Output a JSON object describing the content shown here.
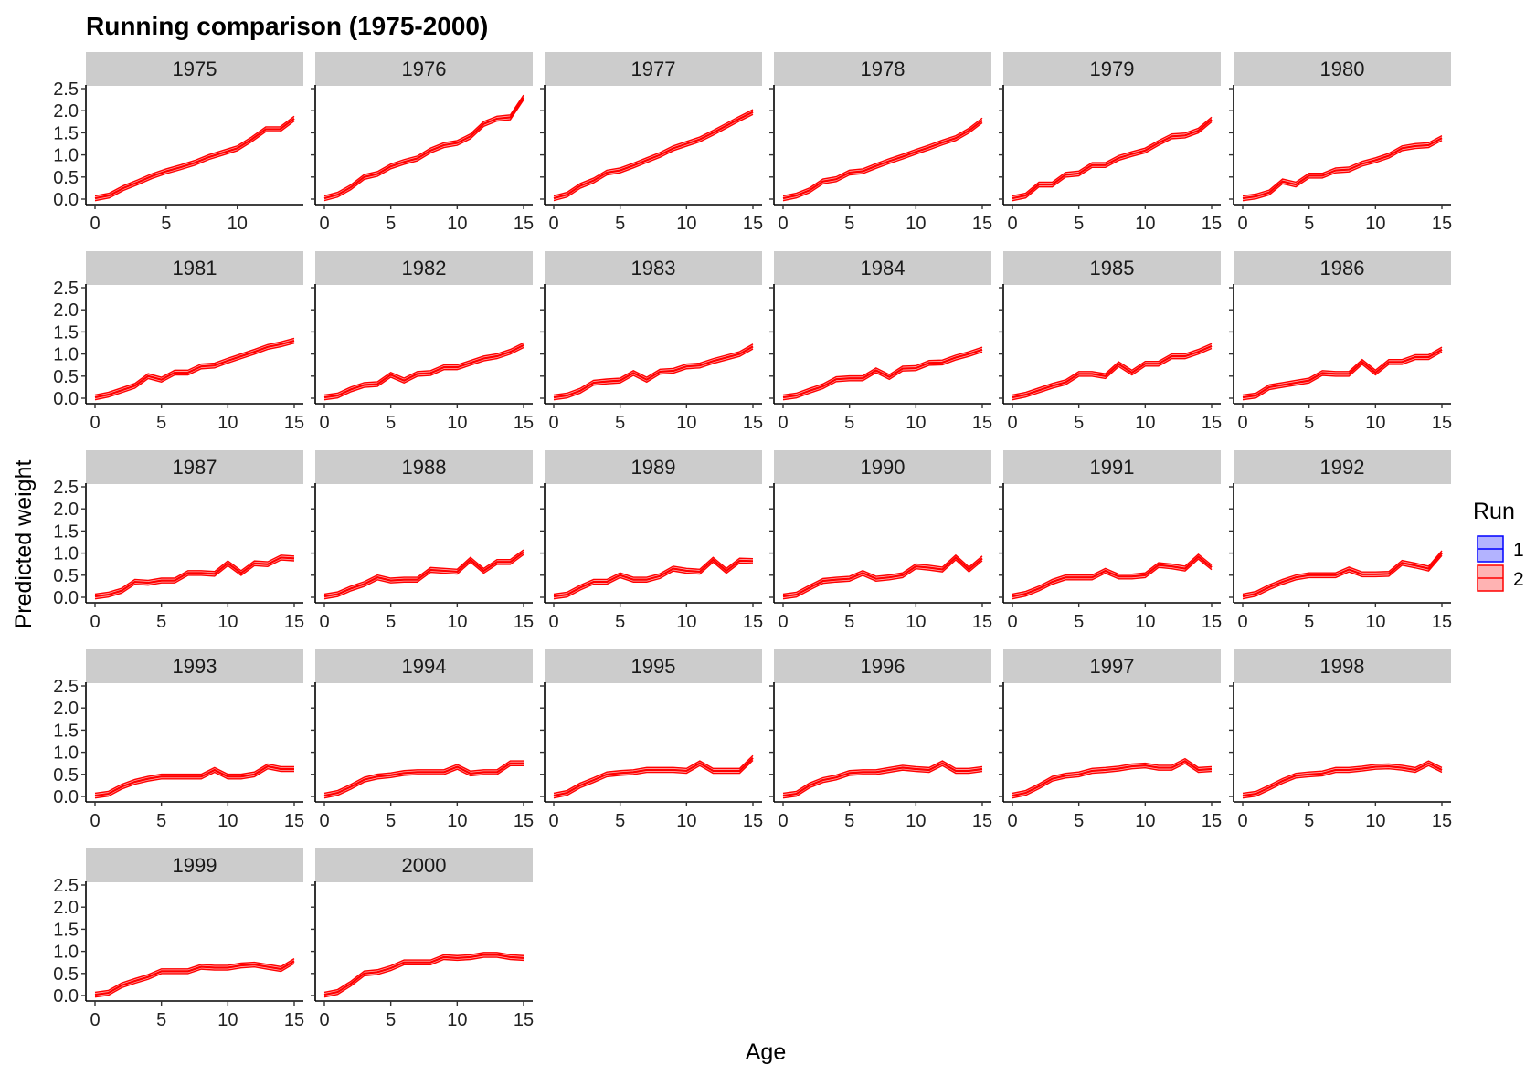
{
  "chart_data": {
    "type": "line",
    "title": "Running comparison (1975-2000)",
    "xlabel": "Age",
    "ylabel": "Predicted weight",
    "ylim": [
      0,
      2.5
    ],
    "y_ticks": [
      "0.0",
      "0.5",
      "1.0",
      "1.5",
      "2.0",
      "2.5"
    ],
    "grid": false,
    "legend": {
      "title": "Run",
      "position": "right",
      "entries": [
        {
          "label": "1",
          "line": "#0000ff",
          "fill": "#b3b3ff"
        },
        {
          "label": "2",
          "line": "#ff0000",
          "fill": "#ffb3b3"
        }
      ]
    },
    "panels": [
      {
        "strip": "1975",
        "xlim": [
          0,
          14
        ],
        "x_ticks": [
          "0",
          "5",
          "10"
        ],
        "y": [
          0.02,
          0.08,
          0.25,
          0.38,
          0.52,
          0.63,
          0.72,
          0.82,
          0.95,
          1.05,
          1.15,
          1.35,
          1.58,
          1.58,
          1.82
        ]
      },
      {
        "strip": "1976",
        "xlim": [
          0,
          15
        ],
        "x_ticks": [
          "0",
          "5",
          "10",
          "15"
        ],
        "y": [
          0.02,
          0.1,
          0.27,
          0.5,
          0.57,
          0.74,
          0.84,
          0.92,
          1.1,
          1.22,
          1.27,
          1.42,
          1.7,
          1.82,
          1.85,
          2.3
        ]
      },
      {
        "strip": "1977",
        "xlim": [
          0,
          15
        ],
        "x_ticks": [
          "0",
          "5",
          "10",
          "15"
        ],
        "y": [
          0.02,
          0.1,
          0.3,
          0.42,
          0.6,
          0.65,
          0.76,
          0.88,
          1.0,
          1.15,
          1.25,
          1.35,
          1.5,
          1.66,
          1.82,
          1.97
        ]
      },
      {
        "strip": "1978",
        "xlim": [
          0,
          15
        ],
        "x_ticks": [
          "0",
          "5",
          "10",
          "15"
        ],
        "y": [
          0.02,
          0.08,
          0.2,
          0.4,
          0.45,
          0.6,
          0.63,
          0.75,
          0.86,
          0.96,
          1.07,
          1.17,
          1.28,
          1.38,
          1.55,
          1.78
        ]
      },
      {
        "strip": "1979",
        "xlim": [
          0,
          15
        ],
        "x_ticks": [
          "0",
          "5",
          "10",
          "15"
        ],
        "y": [
          0.02,
          0.08,
          0.33,
          0.33,
          0.55,
          0.58,
          0.77,
          0.77,
          0.93,
          1.02,
          1.1,
          1.27,
          1.42,
          1.44,
          1.55,
          1.8
        ]
      },
      {
        "strip": "1980",
        "xlim": [
          0,
          15
        ],
        "x_ticks": [
          "0",
          "5",
          "10",
          "15"
        ],
        "y": [
          0.02,
          0.06,
          0.15,
          0.4,
          0.33,
          0.53,
          0.53,
          0.65,
          0.67,
          0.8,
          0.88,
          0.98,
          1.15,
          1.2,
          1.22,
          1.38
        ]
      },
      {
        "strip": "1981",
        "xlim": [
          0,
          15
        ],
        "x_ticks": [
          "0",
          "5",
          "10",
          "15"
        ],
        "y": [
          0.02,
          0.08,
          0.18,
          0.28,
          0.5,
          0.42,
          0.58,
          0.58,
          0.72,
          0.74,
          0.85,
          0.95,
          1.05,
          1.16,
          1.22,
          1.3
        ]
      },
      {
        "strip": "1982",
        "xlim": [
          0,
          15
        ],
        "x_ticks": [
          "0",
          "5",
          "10",
          "15"
        ],
        "y": [
          0.02,
          0.06,
          0.2,
          0.3,
          0.32,
          0.53,
          0.4,
          0.55,
          0.57,
          0.7,
          0.7,
          0.8,
          0.9,
          0.95,
          1.05,
          1.2
        ]
      },
      {
        "strip": "1983",
        "xlim": [
          0,
          15
        ],
        "x_ticks": [
          "0",
          "5",
          "10",
          "15"
        ],
        "y": [
          0.02,
          0.06,
          0.17,
          0.35,
          0.38,
          0.4,
          0.57,
          0.42,
          0.6,
          0.62,
          0.72,
          0.74,
          0.84,
          0.92,
          1.0,
          1.17
        ]
      },
      {
        "strip": "1984",
        "xlim": [
          0,
          15
        ],
        "x_ticks": [
          "0",
          "5",
          "10",
          "15"
        ],
        "y": [
          0.02,
          0.06,
          0.17,
          0.27,
          0.43,
          0.45,
          0.45,
          0.63,
          0.48,
          0.67,
          0.68,
          0.8,
          0.81,
          0.92,
          1.0,
          1.1
        ]
      },
      {
        "strip": "1985",
        "xlim": [
          0,
          15
        ],
        "x_ticks": [
          "0",
          "5",
          "10",
          "15"
        ],
        "y": [
          0.02,
          0.08,
          0.18,
          0.28,
          0.36,
          0.55,
          0.55,
          0.5,
          0.77,
          0.58,
          0.78,
          0.78,
          0.95,
          0.95,
          1.05,
          1.18
        ]
      },
      {
        "strip": "1986",
        "xlim": [
          0,
          15
        ],
        "x_ticks": [
          "0",
          "5",
          "10",
          "15"
        ],
        "y": [
          0.02,
          0.06,
          0.25,
          0.3,
          0.35,
          0.4,
          0.57,
          0.55,
          0.55,
          0.82,
          0.58,
          0.82,
          0.82,
          0.93,
          0.93,
          1.1
        ]
      },
      {
        "strip": "1987",
        "xlim": [
          0,
          15
        ],
        "x_ticks": [
          "0",
          "5",
          "10",
          "15"
        ],
        "y": [
          0.02,
          0.06,
          0.15,
          0.35,
          0.33,
          0.38,
          0.38,
          0.55,
          0.55,
          0.53,
          0.77,
          0.55,
          0.77,
          0.75,
          0.9,
          0.88
        ]
      },
      {
        "strip": "1988",
        "xlim": [
          0,
          15
        ],
        "x_ticks": [
          "0",
          "5",
          "10",
          "15"
        ],
        "y": [
          0.02,
          0.07,
          0.2,
          0.3,
          0.45,
          0.38,
          0.4,
          0.4,
          0.62,
          0.6,
          0.58,
          0.85,
          0.6,
          0.8,
          0.8,
          1.02
        ]
      },
      {
        "strip": "1989",
        "xlim": [
          0,
          15
        ],
        "x_ticks": [
          "0",
          "5",
          "10",
          "15"
        ],
        "y": [
          0.02,
          0.06,
          0.22,
          0.35,
          0.35,
          0.5,
          0.4,
          0.4,
          0.48,
          0.65,
          0.6,
          0.58,
          0.85,
          0.6,
          0.83,
          0.82
        ]
      },
      {
        "strip": "1990",
        "xlim": [
          0,
          15
        ],
        "x_ticks": [
          "0",
          "5",
          "10",
          "15"
        ],
        "y": [
          0.02,
          0.06,
          0.22,
          0.37,
          0.4,
          0.42,
          0.55,
          0.42,
          0.45,
          0.5,
          0.7,
          0.67,
          0.63,
          0.9,
          0.63,
          0.88
        ]
      },
      {
        "strip": "1991",
        "xlim": [
          0,
          15
        ],
        "x_ticks": [
          "0",
          "5",
          "10",
          "15"
        ],
        "y": [
          0.02,
          0.08,
          0.2,
          0.35,
          0.45,
          0.45,
          0.45,
          0.6,
          0.47,
          0.47,
          0.5,
          0.73,
          0.7,
          0.65,
          0.92,
          0.68
        ]
      },
      {
        "strip": "1992",
        "xlim": [
          0,
          15
        ],
        "x_ticks": [
          "0",
          "5",
          "10",
          "15"
        ],
        "y": [
          0.02,
          0.08,
          0.23,
          0.35,
          0.45,
          0.5,
          0.5,
          0.5,
          0.63,
          0.52,
          0.52,
          0.53,
          0.78,
          0.72,
          0.65,
          1.0
        ]
      },
      {
        "strip": "1993",
        "xlim": [
          0,
          15
        ],
        "x_ticks": [
          "0",
          "5",
          "10",
          "15"
        ],
        "y": [
          0.02,
          0.06,
          0.22,
          0.33,
          0.4,
          0.45,
          0.45,
          0.45,
          0.45,
          0.6,
          0.45,
          0.45,
          0.5,
          0.68,
          0.62,
          0.62
        ]
      },
      {
        "strip": "1994",
        "xlim": [
          0,
          15
        ],
        "x_ticks": [
          "0",
          "5",
          "10",
          "15"
        ],
        "y": [
          0.02,
          0.08,
          0.22,
          0.38,
          0.45,
          0.48,
          0.53,
          0.55,
          0.55,
          0.55,
          0.67,
          0.52,
          0.55,
          0.55,
          0.75,
          0.75
        ]
      },
      {
        "strip": "1995",
        "xlim": [
          0,
          15
        ],
        "x_ticks": [
          "0",
          "5",
          "10",
          "15"
        ],
        "y": [
          0.02,
          0.08,
          0.25,
          0.37,
          0.5,
          0.53,
          0.55,
          0.6,
          0.6,
          0.6,
          0.58,
          0.75,
          0.58,
          0.58,
          0.58,
          0.87
        ]
      },
      {
        "strip": "1996",
        "xlim": [
          0,
          15
        ],
        "x_ticks": [
          "0",
          "5",
          "10",
          "15"
        ],
        "y": [
          0.02,
          0.06,
          0.25,
          0.37,
          0.43,
          0.53,
          0.55,
          0.55,
          0.6,
          0.65,
          0.62,
          0.6,
          0.75,
          0.58,
          0.58,
          0.62
        ]
      },
      {
        "strip": "1997",
        "xlim": [
          0,
          15
        ],
        "x_ticks": [
          "0",
          "5",
          "10",
          "15"
        ],
        "y": [
          0.02,
          0.08,
          0.23,
          0.4,
          0.47,
          0.5,
          0.58,
          0.6,
          0.63,
          0.68,
          0.7,
          0.65,
          0.65,
          0.8,
          0.6,
          0.62
        ]
      },
      {
        "strip": "1998",
        "xlim": [
          0,
          15
        ],
        "x_ticks": [
          "0",
          "5",
          "10",
          "15"
        ],
        "y": [
          0.02,
          0.06,
          0.2,
          0.35,
          0.47,
          0.5,
          0.52,
          0.6,
          0.6,
          0.63,
          0.67,
          0.68,
          0.65,
          0.6,
          0.75,
          0.6
        ]
      },
      {
        "strip": "1999",
        "xlim": [
          0,
          15
        ],
        "x_ticks": [
          "0",
          "5",
          "10",
          "15"
        ],
        "y": [
          0.02,
          0.06,
          0.23,
          0.33,
          0.42,
          0.55,
          0.55,
          0.55,
          0.65,
          0.63,
          0.63,
          0.68,
          0.7,
          0.65,
          0.6,
          0.78
        ]
      },
      {
        "strip": "2000",
        "xlim": [
          0,
          15
        ],
        "x_ticks": [
          "0",
          "5",
          "10",
          "15"
        ],
        "y": [
          0.02,
          0.08,
          0.27,
          0.5,
          0.53,
          0.62,
          0.75,
          0.75,
          0.75,
          0.87,
          0.85,
          0.87,
          0.92,
          0.92,
          0.87,
          0.85
        ]
      }
    ]
  }
}
